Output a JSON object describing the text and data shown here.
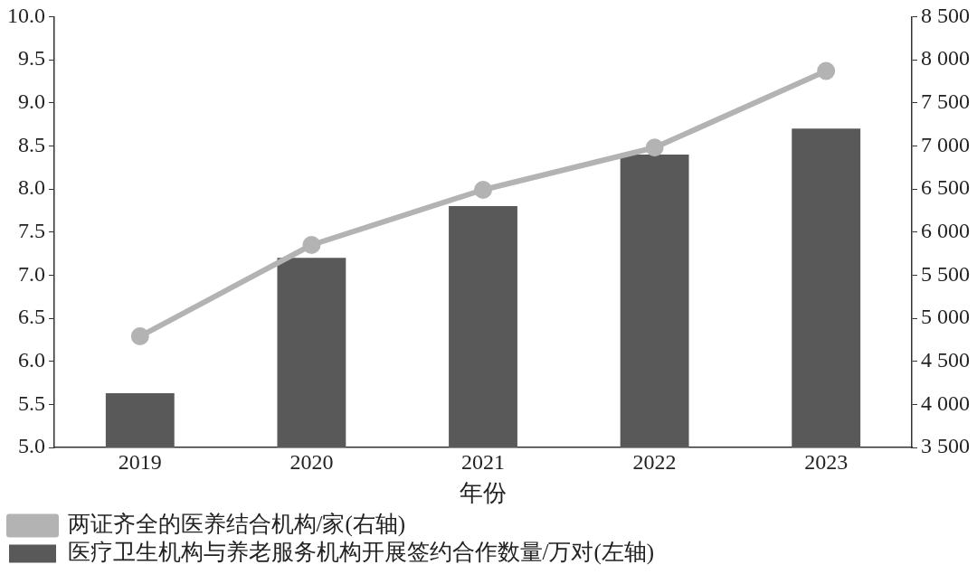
{
  "chart_data": {
    "type": "bar",
    "xlabel": "年份",
    "categories": [
      "2019",
      "2020",
      "2021",
      "2022",
      "2023"
    ],
    "series": [
      {
        "name": "医疗卫生机构与养老服务机构开展签约合作数量/万对(左轴)",
        "color": "#595959",
        "values": [
          5.63,
          7.2,
          7.8,
          8.4,
          8.7
        ]
      },
      {
        "name": "两证齐全的医养结合机构/家(右轴)",
        "type": "line",
        "axis": "y2",
        "color": "#b3b3b3",
        "values": [
          4790,
          5850,
          6490,
          6980,
          7870
        ]
      }
    ],
    "ylim": [
      5.0,
      10.0
    ],
    "yticks": [
      {
        "value": 5,
        "label": "5.0"
      },
      {
        "value": 5.5,
        "label": "5.5"
      },
      {
        "value": 6,
        "label": "6.0"
      },
      {
        "value": 6.5,
        "label": "6.5"
      },
      {
        "value": 7,
        "label": "7.0"
      },
      {
        "value": 7.5,
        "label": "7.5"
      },
      {
        "value": 8,
        "label": "8.0"
      },
      {
        "value": 8.5,
        "label": "8.5"
      },
      {
        "value": 9,
        "label": "9.0"
      },
      {
        "value": 9.5,
        "label": "9.5"
      },
      {
        "value": 10,
        "label": "10.0"
      }
    ],
    "y2lim": [
      3500,
      8500
    ],
    "y2ticks": [
      {
        "value": 3500,
        "label": "3 500"
      },
      {
        "value": 4000,
        "label": "4 000"
      },
      {
        "value": 4500,
        "label": "4 500"
      },
      {
        "value": 5000,
        "label": "5 000"
      },
      {
        "value": 5500,
        "label": "5 500"
      },
      {
        "value": 6000,
        "label": "6 000"
      },
      {
        "value": 6500,
        "label": "6 500"
      },
      {
        "value": 7000,
        "label": "7 000"
      },
      {
        "value": 7500,
        "label": "7 500"
      },
      {
        "value": 8000,
        "label": "8 000"
      },
      {
        "value": 8500,
        "label": "8 500"
      }
    ],
    "grid": false,
    "legend": "bottom",
    "marker": "circle"
  }
}
